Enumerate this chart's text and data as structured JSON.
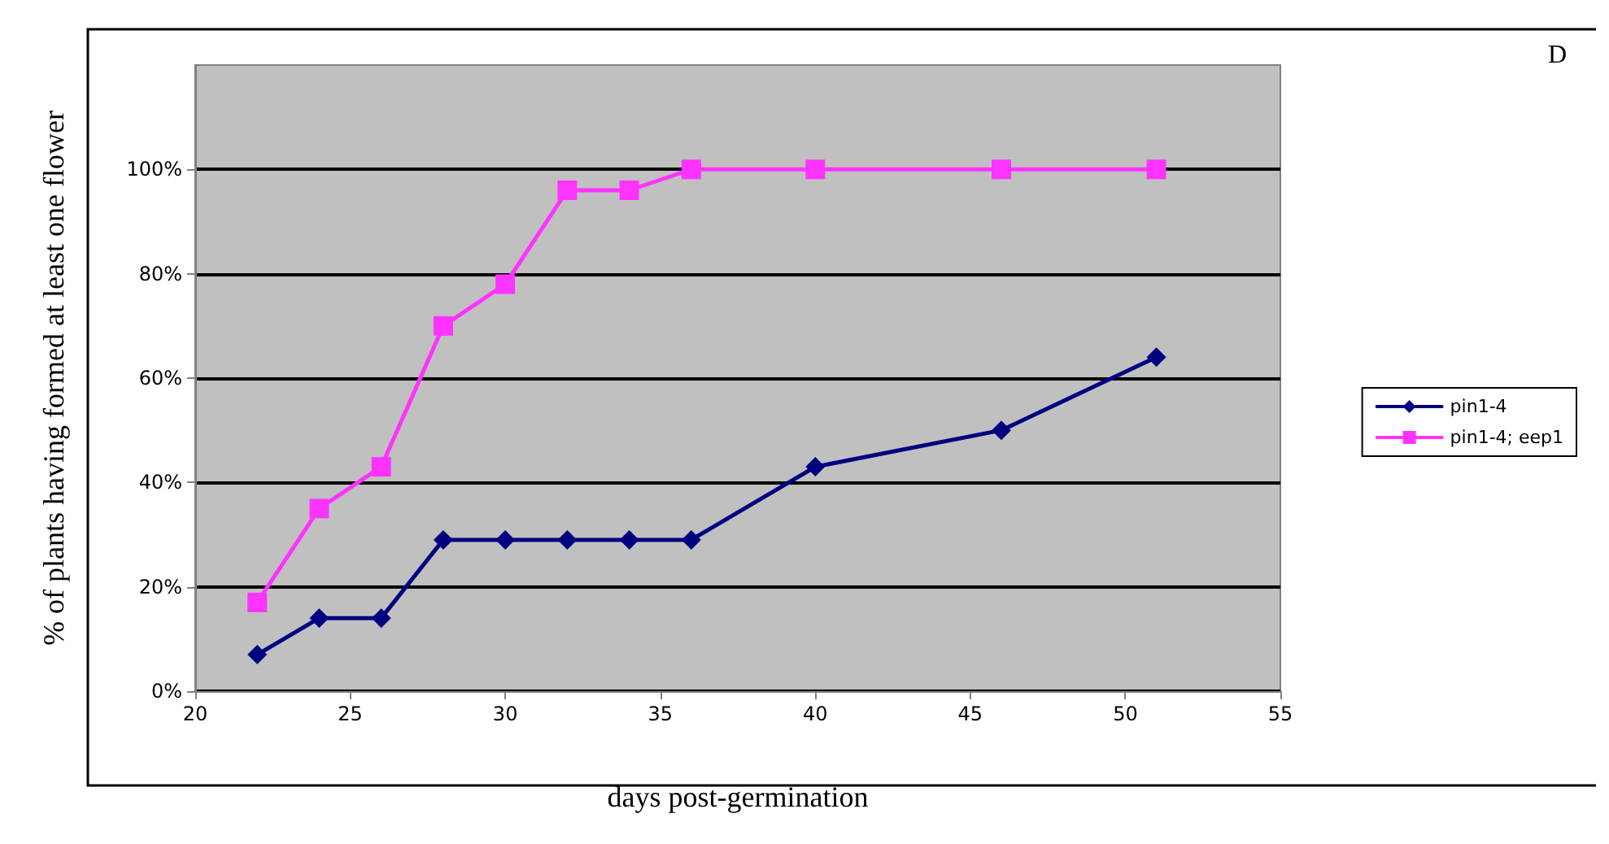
{
  "chart_data": {
    "type": "line",
    "xlabel": "days post-germination",
    "ylabel": "% of plants having formed at least one flower",
    "annotations": [
      "D"
    ],
    "x": [
      22,
      24,
      26,
      28,
      30,
      32,
      34,
      36,
      40,
      46,
      51
    ],
    "series": [
      {
        "name": "pin1-4",
        "color": "#000080",
        "marker": "diamond",
        "values": [
          7,
          14,
          14,
          29,
          29,
          29,
          29,
          29,
          43,
          50,
          64
        ]
      },
      {
        "name": "pin1-4; eep1",
        "color": "#ff33ff",
        "marker": "square",
        "values": [
          17,
          35,
          43,
          70,
          78,
          96,
          96,
          100,
          100,
          100,
          100
        ]
      }
    ],
    "xlim": [
      20,
      55
    ],
    "xticks": [
      20,
      25,
      30,
      35,
      40,
      45,
      50,
      55
    ],
    "ylim": [
      0,
      120
    ],
    "yticks": [
      {
        "value": 0,
        "label": "0%"
      },
      {
        "value": 20,
        "label": "20%"
      },
      {
        "value": 40,
        "label": "40%"
      },
      {
        "value": 60,
        "label": "60%"
      },
      {
        "value": 80,
        "label": "80%"
      },
      {
        "value": 100,
        "label": "100%"
      }
    ],
    "grid": "y",
    "legend": "right",
    "line_style": "solid"
  }
}
